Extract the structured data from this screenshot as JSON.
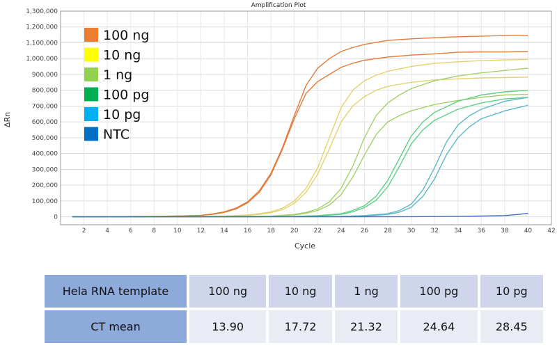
{
  "chart_data": {
    "type": "line",
    "title": "Amplification Plot",
    "xlabel": "Cycle",
    "ylabel": "ΔRn",
    "xlim": [
      0,
      42
    ],
    "ylim": [
      -50000,
      1300000
    ],
    "x_ticks": [
      2,
      4,
      6,
      8,
      10,
      12,
      14,
      16,
      18,
      20,
      22,
      24,
      26,
      28,
      30,
      32,
      34,
      36,
      38,
      40,
      42
    ],
    "y_ticks": [
      0,
      100000,
      200000,
      300000,
      400000,
      500000,
      600000,
      700000,
      800000,
      900000,
      1000000,
      1100000,
      1200000,
      1300000
    ],
    "y_tick_labels": [
      "0",
      "100,000",
      "200,000",
      "300,000",
      "400,000",
      "500,000",
      "600,000",
      "700,000",
      "800,000",
      "900,000",
      "1,000,000",
      "1,100,000",
      "1,200,000",
      "1,300,000"
    ],
    "grid": true,
    "legend_position": "top-left",
    "series": [
      {
        "name": "100 ng",
        "color": "#e07b39",
        "legend_color": "#ed7d31",
        "curves": [
          {
            "x": [
              1,
              8,
              10,
              12,
              13,
              14,
              15,
              16,
              17,
              18,
              19,
              20,
              21,
              22,
              23,
              24,
              25,
              26,
              28,
              30,
              32,
              34,
              36,
              38,
              39,
              40
            ],
            "y": [
              0,
              3000,
              5000,
              10000,
              18000,
              32000,
              55000,
              95000,
              165000,
              275000,
              440000,
              640000,
              830000,
              940000,
              1000000,
              1045000,
              1070000,
              1090000,
              1115000,
              1125000,
              1132000,
              1138000,
              1142000,
              1145000,
              1148000,
              1145000
            ]
          },
          {
            "x": [
              1,
              8,
              10,
              12,
              13,
              14,
              15,
              16,
              17,
              18,
              19,
              20,
              21,
              22,
              23,
              24,
              25,
              26,
              28,
              30,
              32,
              34,
              36,
              38,
              40
            ],
            "y": [
              0,
              3000,
              5000,
              9000,
              16000,
              28000,
              50000,
              88000,
              155000,
              265000,
              430000,
              620000,
              780000,
              855000,
              900000,
              945000,
              970000,
              990000,
              1010000,
              1022000,
              1030000,
              1040000,
              1042000,
              1042000,
              1045000
            ]
          }
        ]
      },
      {
        "name": "10 ng",
        "color": "#e3d36e",
        "legend_color": "#ffff00",
        "curves": [
          {
            "x": [
              1,
              10,
              14,
              16,
              17,
              18,
              19,
              20,
              21,
              22,
              23,
              24,
              25,
              26,
              27,
              28,
              30,
              32,
              34,
              36,
              38,
              40
            ],
            "y": [
              0,
              2000,
              5000,
              12000,
              20000,
              32000,
              55000,
              100000,
              180000,
              310000,
              500000,
              690000,
              800000,
              860000,
              895000,
              920000,
              950000,
              970000,
              980000,
              987000,
              992000,
              995000
            ]
          },
          {
            "x": [
              1,
              10,
              14,
              16,
              17,
              18,
              19,
              20,
              21,
              22,
              23,
              24,
              25,
              26,
              27,
              28,
              30,
              32,
              34,
              36,
              38,
              40
            ],
            "y": [
              0,
              2000,
              4000,
              10000,
              16000,
              26000,
              45000,
              85000,
              155000,
              270000,
              430000,
              600000,
              700000,
              760000,
              800000,
              825000,
              850000,
              865000,
              872000,
              878000,
              880000,
              883000
            ]
          }
        ]
      },
      {
        "name": "1 ng",
        "color": "#a3d16a",
        "legend_color": "#92d050",
        "curves": [
          {
            "x": [
              1,
              12,
              18,
              20,
              21,
              22,
              23,
              24,
              25,
              26,
              27,
              28,
              29,
              30,
              32,
              34,
              36,
              38,
              40
            ],
            "y": [
              0,
              1000,
              5000,
              15000,
              28000,
              50000,
              95000,
              180000,
              320000,
              500000,
              640000,
              720000,
              770000,
              810000,
              860000,
              890000,
              910000,
              925000,
              940000
            ]
          },
          {
            "x": [
              1,
              12,
              18,
              20,
              21,
              22,
              23,
              24,
              25,
              26,
              27,
              28,
              29,
              30,
              32,
              34,
              36,
              38,
              40
            ],
            "y": [
              0,
              1000,
              4000,
              12000,
              22000,
              40000,
              75000,
              140000,
              250000,
              390000,
              520000,
              600000,
              640000,
              670000,
              710000,
              735000,
              755000,
              770000,
              775000
            ]
          }
        ]
      },
      {
        "name": "100 pg",
        "color": "#5fcf87",
        "legend_color": "#00b050",
        "curves": [
          {
            "x": [
              1,
              14,
              20,
              22,
              24,
              25,
              26,
              27,
              28,
              29,
              30,
              31,
              32,
              34,
              36,
              38,
              40
            ],
            "y": [
              0,
              1000,
              3000,
              8000,
              20000,
              40000,
              70000,
              130000,
              230000,
              370000,
              510000,
              600000,
              660000,
              730000,
              770000,
              790000,
              800000
            ]
          },
          {
            "x": [
              1,
              14,
              20,
              22,
              24,
              25,
              26,
              27,
              28,
              29,
              30,
              31,
              32,
              34,
              36,
              38,
              40
            ],
            "y": [
              0,
              1000,
              2000,
              6000,
              16000,
              32000,
              58000,
              105000,
              190000,
              320000,
              460000,
              550000,
              610000,
              680000,
              720000,
              745000,
              755000
            ]
          }
        ]
      },
      {
        "name": "10 pg",
        "color": "#5db7c9",
        "legend_color": "#00b0f0",
        "curves": [
          {
            "x": [
              1,
              16,
              24,
              26,
              28,
              29,
              30,
              31,
              32,
              33,
              34,
              35,
              36,
              38,
              40
            ],
            "y": [
              0,
              1000,
              3000,
              8000,
              20000,
              40000,
              80000,
              170000,
              310000,
              470000,
              580000,
              640000,
              680000,
              730000,
              755000
            ]
          },
          {
            "x": [
              1,
              16,
              24,
              26,
              28,
              29,
              30,
              31,
              32,
              33,
              34,
              35,
              36,
              38,
              40
            ],
            "y": [
              0,
              1000,
              2000,
              6000,
              15000,
              30000,
              60000,
              130000,
              240000,
              390000,
              500000,
              570000,
              620000,
              670000,
              705000
            ]
          }
        ]
      },
      {
        "name": "NTC",
        "color": "#3e6fb8",
        "legend_color": "#0070c0",
        "curves": [
          {
            "x": [
              1,
              20,
              30,
              32,
              34,
              36,
              38,
              39,
              40
            ],
            "y": [
              0,
              0,
              1000,
              2000,
              3000,
              5000,
              8000,
              14000,
              22000
            ]
          }
        ]
      }
    ]
  },
  "table": {
    "header_label": "Hela RNA template",
    "columns": [
      "100 ng",
      "10 ng",
      "1 ng",
      "100 pg",
      "10 pg"
    ],
    "row_label": "CT mean",
    "values": [
      "13.90",
      "17.72",
      "21.32",
      "24.64",
      "28.45"
    ]
  }
}
